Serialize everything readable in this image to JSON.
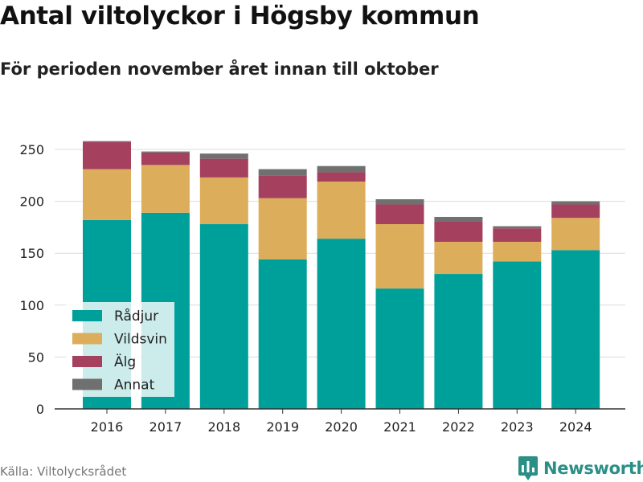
{
  "title": "Antal viltolyckor i Högsby kommun",
  "subtitle": "För perioden november året innan till oktober",
  "source": "Källa: Viltolycksrådet",
  "brand": "Newsworthy",
  "chart_data": {
    "type": "bar",
    "stacked": true,
    "categories": [
      "2016",
      "2017",
      "2018",
      "2019",
      "2020",
      "2021",
      "2022",
      "2023",
      "2024"
    ],
    "series": [
      {
        "name": "Rådjur",
        "color": "#00a09a",
        "values": [
          182,
          189,
          178,
          144,
          164,
          116,
          130,
          142,
          153
        ]
      },
      {
        "name": "Vildsvin",
        "color": "#dcad5a",
        "values": [
          49,
          46,
          45,
          59,
          55,
          62,
          31,
          19,
          31
        ]
      },
      {
        "name": "Älg",
        "color": "#a6405f",
        "values": [
          26,
          12,
          18,
          22,
          9,
          19,
          20,
          13,
          13
        ]
      },
      {
        "name": "Annat",
        "color": "#707070",
        "values": [
          1,
          1,
          5,
          6,
          6,
          5,
          4,
          2,
          3
        ]
      }
    ],
    "yticks": [
      0,
      50,
      100,
      150,
      200,
      250
    ],
    "ylim": [
      0,
      270
    ],
    "grid": true,
    "legend": "bottom-left"
  }
}
